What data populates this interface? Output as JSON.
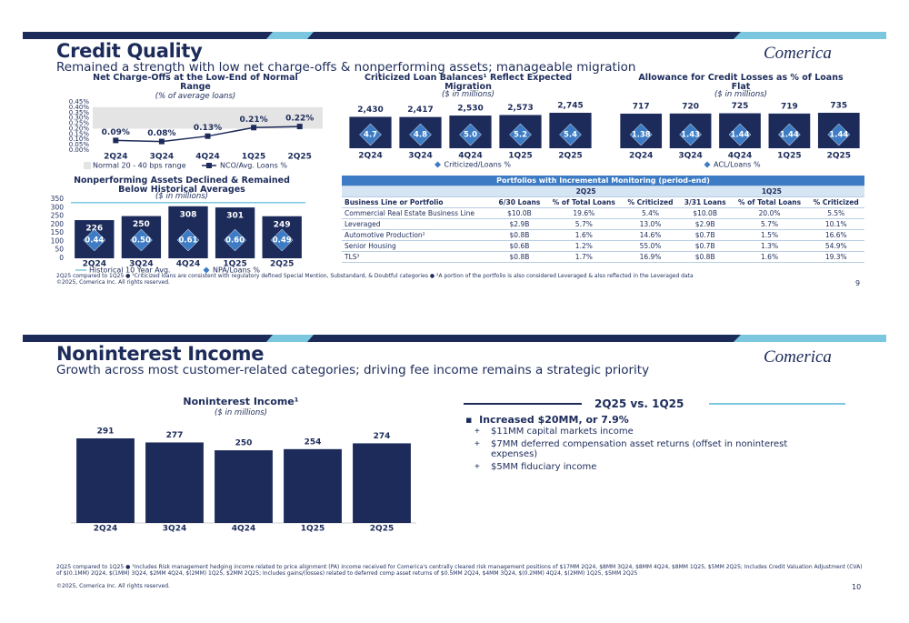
{
  "slide1": {
    "title": "Credit Quality",
    "subtitle": "Remained a strength with low net charge-offs & nonperforming assets; manageable migration",
    "logo": "Comerica",
    "footnote": "2Q25 compared to 1Q25 ● ¹Criticized loans are consistent with regulatory defined Special Mention, Substandard, & Doubtful categories ● ²A portion of the portfolio is also considered Leveraged & also reflected in the Leveraged data",
    "copyright": "©2025, Comerica Inc. All rights reserved.",
    "page": "9"
  },
  "chart_data": [
    {
      "type": "line",
      "title": "Net Charge-Offs at the Low-End of Normal Range",
      "subtitle": "(% of average loans)",
      "categories": [
        "2Q24",
        "3Q24",
        "4Q24",
        "1Q25",
        "2Q25"
      ],
      "series": [
        {
          "name": "NCO/Avg. Loans %",
          "color": "#1c2b5a",
          "values": [
            0.09,
            0.08,
            0.13,
            0.21,
            0.22
          ],
          "value_labels": [
            "0.09%",
            "0.08%",
            "0.13%",
            "0.21%",
            "0.22%"
          ]
        }
      ],
      "band": {
        "name": "Normal 20 - 40 bps range",
        "range": [
          0.2,
          0.4
        ],
        "color": "#e4e4e4"
      },
      "ylim": [
        0,
        0.45
      ],
      "yticks": [
        {
          "value": 0,
          "label": "0.00%"
        },
        {
          "value": 0.05,
          "label": "0.05%"
        },
        {
          "value": 0.1,
          "label": "0.10%"
        },
        {
          "value": 0.15,
          "label": "0.15%"
        },
        {
          "value": 0.2,
          "label": "0.20%"
        },
        {
          "value": 0.25,
          "label": "0.25%"
        },
        {
          "value": 0.3,
          "label": "0.30%"
        },
        {
          "value": 0.35,
          "label": "0.35%"
        },
        {
          "value": 0.4,
          "label": "0.40%"
        },
        {
          "value": 0.45,
          "label": "0.45%"
        }
      ]
    },
    {
      "type": "bar",
      "title": "Criticized Loan Balances¹ Reflect Expected Migration",
      "subtitle": "($ in millions)",
      "categories": [
        "2Q24",
        "3Q24",
        "4Q24",
        "1Q25",
        "2Q25"
      ],
      "color": "#1c2b5a",
      "values": [
        2430,
        2417,
        2530,
        2573,
        2745
      ],
      "value_labels": [
        "2,430",
        "2,417",
        "2,530",
        "2,573",
        "2,745"
      ],
      "ratio_series": {
        "name": "Criticized/Loans %",
        "color": "#3d7cc4",
        "values": [
          4.7,
          4.8,
          5.0,
          5.2,
          5.4
        ],
        "value_labels": [
          "4.7",
          "4.8",
          "5.0",
          "5.2",
          "5.4"
        ]
      }
    },
    {
      "type": "bar",
      "title": "Allowance for Credit Losses as % of Loans Flat",
      "subtitle": "($ in millions)",
      "categories": [
        "2Q24",
        "3Q24",
        "4Q24",
        "1Q25",
        "2Q25"
      ],
      "color": "#1c2b5a",
      "values": [
        717,
        720,
        725,
        719,
        735
      ],
      "ratio_series": {
        "name": "ACL/Loans %",
        "color": "#3d7cc4",
        "values": [
          1.38,
          1.43,
          1.44,
          1.44,
          1.44
        ],
        "value_labels": [
          "1.38",
          "1.43",
          "1.44",
          "1.44",
          "1.44"
        ]
      }
    },
    {
      "type": "bar",
      "title": "Nonperforming Assets Declined & Remained Below Historical Averages",
      "subtitle": "($ in millions)",
      "categories": [
        "2Q24",
        "3Q24",
        "4Q24",
        "1Q25",
        "2Q25"
      ],
      "color": "#1c2b5a",
      "values": [
        226,
        250,
        308,
        301,
        249
      ],
      "ylim": [
        0,
        350
      ],
      "yticks": [
        0,
        50,
        100,
        150,
        200,
        250,
        300,
        350
      ],
      "reference_line": {
        "name": "Historical 10 Year Avg.",
        "value": 330,
        "color": "#7cc7e0"
      },
      "ratio_series": {
        "name": "NPA/Loans %",
        "color": "#3d7cc4",
        "values": [
          0.44,
          0.5,
          0.61,
          0.6,
          0.49
        ],
        "value_labels": [
          "0.44",
          "0.50",
          "0.61",
          "0.60",
          "0.49"
        ]
      }
    },
    {
      "type": "bar",
      "title": "Noninterest Income¹",
      "subtitle": "($ in millions)",
      "categories": [
        "2Q24",
        "3Q24",
        "4Q24",
        "1Q25",
        "2Q25"
      ],
      "color": "#1c2b5a",
      "values": [
        291,
        277,
        250,
        254,
        274
      ]
    }
  ],
  "table": {
    "title": "Portfolios with Incremental Monitoring (period-end)",
    "groups": [
      "2Q25",
      "1Q25"
    ],
    "columns": [
      "Business Line or Portfolio",
      "6/30 Loans",
      "% of Total Loans",
      "% Criticized",
      "3/31 Loans",
      "% of Total Loans",
      "% Criticized"
    ],
    "rows": [
      [
        "Commercial Real Estate Business Line",
        "$10.0B",
        "19.6%",
        "5.4%",
        "$10.0B",
        "20.0%",
        "5.5%"
      ],
      [
        "Leveraged",
        "$2.9B",
        "5.7%",
        "13.0%",
        "$2.9B",
        "5.7%",
        "10.1%"
      ],
      [
        "Automotive Production²",
        "$0.8B",
        "1.6%",
        "14.6%",
        "$0.7B",
        "1.5%",
        "16.6%"
      ],
      [
        "Senior Housing",
        "$0.6B",
        "1.2%",
        "55.0%",
        "$0.7B",
        "1.3%",
        "54.9%"
      ],
      [
        "TLS³",
        "$0.8B",
        "1.7%",
        "16.9%",
        "$0.8B",
        "1.6%",
        "19.3%"
      ]
    ]
  },
  "slide2": {
    "title": "Noninterest Income",
    "subtitle": "Growth across most customer-related categories; driving fee income remains a strategic priority",
    "logo": "Comerica",
    "callout": {
      "heading": "2Q25 vs. 1Q25",
      "bullet": "Increased $20MM, or 7.9%",
      "subbullets": [
        "$11MM capital markets income",
        "$7MM deferred compensation asset returns (offset in noninterest expenses)",
        "$5MM fiduciary income"
      ]
    },
    "footnote": "2Q25 compared to 1Q25 ● ¹Includes Risk management hedging income related to price alignment (PA) income received for Comerica's centrally cleared risk management positions of $17MM 2Q24, $8MM 3Q24, $8MM 4Q24, $8MM 1Q25, $5MM 2Q25; Includes Credit Valuation Adjustment (CVA) of $(0.1MM) 2Q24, $(1MM) 3Q24, $2MM 4Q24, $(2MM) 1Q25, $2MM 2Q25; Includes gains/(losses) related to deferred comp asset returns of $0.5MM 2Q24, $4MM 3Q24, $(0.2MM) 4Q24, $(2MM) 1Q25, $5MM 2Q25",
    "copyright": "©2025, Comerica Inc. All rights reserved.",
    "page": "10"
  }
}
